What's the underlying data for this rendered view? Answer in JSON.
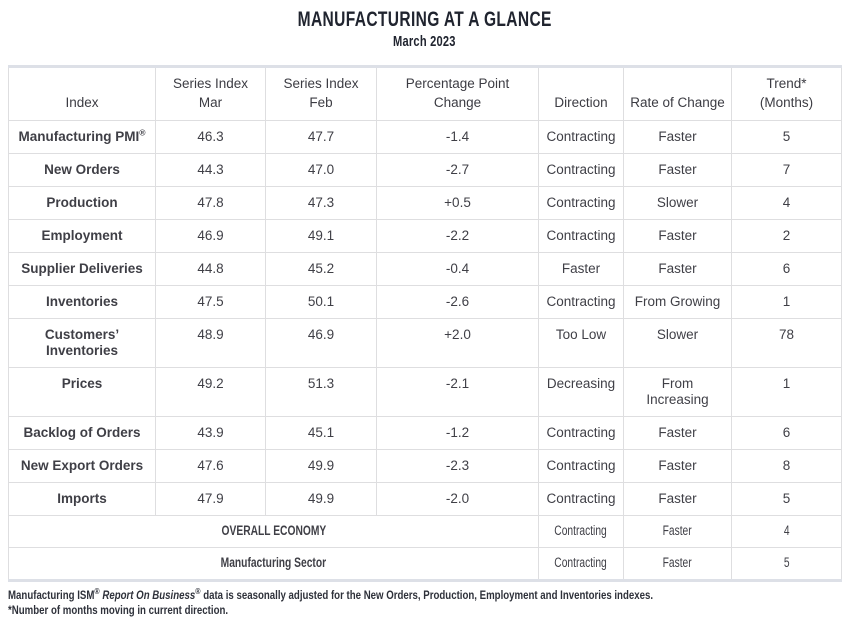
{
  "title": "MANUFACTURING AT A GLANCE",
  "subtitle": "March 2023",
  "colors": {
    "title_text": "#20242f",
    "body_text": "#3f3f46",
    "inner_border": "#dedee0",
    "outer_border": "#dde0e7",
    "background": "#ffffff"
  },
  "table": {
    "columns": [
      "Index",
      "Series Index\nMar",
      "Series Index\nFeb",
      "Percentage Point\nChange",
      "Direction",
      "Rate of Change",
      "Trend*\n(Months)"
    ],
    "rows": [
      {
        "index": "Manufacturing PMI",
        "index_sup": "®",
        "mar": "46.3",
        "feb": "47.7",
        "ppc": "-1.4",
        "direction": "Contracting",
        "rate": "Faster",
        "trend": "5"
      },
      {
        "index": "New Orders",
        "mar": "44.3",
        "feb": "47.0",
        "ppc": "-2.7",
        "direction": "Contracting",
        "rate": "Faster",
        "trend": "7"
      },
      {
        "index": "Production",
        "mar": "47.8",
        "feb": "47.3",
        "ppc": "+0.5",
        "direction": "Contracting",
        "rate": "Slower",
        "trend": "4"
      },
      {
        "index": "Employment",
        "mar": "46.9",
        "feb": "49.1",
        "ppc": "-2.2",
        "direction": "Contracting",
        "rate": "Faster",
        "trend": "2"
      },
      {
        "index": "Supplier Deliveries",
        "mar": "44.8",
        "feb": "45.2",
        "ppc": "-0.4",
        "direction": "Faster",
        "rate": "Faster",
        "trend": "6"
      },
      {
        "index": "Inventories",
        "mar": "47.5",
        "feb": "50.1",
        "ppc": "-2.6",
        "direction": "Contracting",
        "rate": "From Growing",
        "trend": "1"
      },
      {
        "index": "Customers’\nInventories",
        "mar": "48.9",
        "feb": "46.9",
        "ppc": "+2.0",
        "direction": "Too Low",
        "rate": "Slower",
        "trend": "78"
      },
      {
        "index": "Prices",
        "mar": "49.2",
        "feb": "51.3",
        "ppc": "-2.1",
        "direction": "Decreasing",
        "rate": "From\nIncreasing",
        "trend": "1"
      },
      {
        "index": "Backlog of Orders",
        "mar": "43.9",
        "feb": "45.1",
        "ppc": "-1.2",
        "direction": "Contracting",
        "rate": "Faster",
        "trend": "6"
      },
      {
        "index": "New Export Orders",
        "mar": "47.6",
        "feb": "49.9",
        "ppc": "-2.3",
        "direction": "Contracting",
        "rate": "Faster",
        "trend": "8"
      },
      {
        "index": "Imports",
        "mar": "47.9",
        "feb": "49.9",
        "ppc": "-2.0",
        "direction": "Contracting",
        "rate": "Faster",
        "trend": "5"
      }
    ],
    "summary_rows": [
      {
        "label": "OVERALL ECONOMY",
        "direction": "Contracting",
        "rate": "Faster",
        "trend": "4"
      },
      {
        "label": "Manufacturing Sector",
        "direction": "Contracting",
        "rate": "Faster",
        "trend": "5"
      }
    ]
  },
  "footnotes": {
    "line1": {
      "bold": "Manufacturing ISM",
      "sup1": "®",
      "italic": "Report On Business",
      "sup2": "®",
      "rest": " data is seasonally adjusted for the New Orders, Production, Employment and Inventories indexes."
    },
    "line2": "*Number of months moving in current direction."
  }
}
